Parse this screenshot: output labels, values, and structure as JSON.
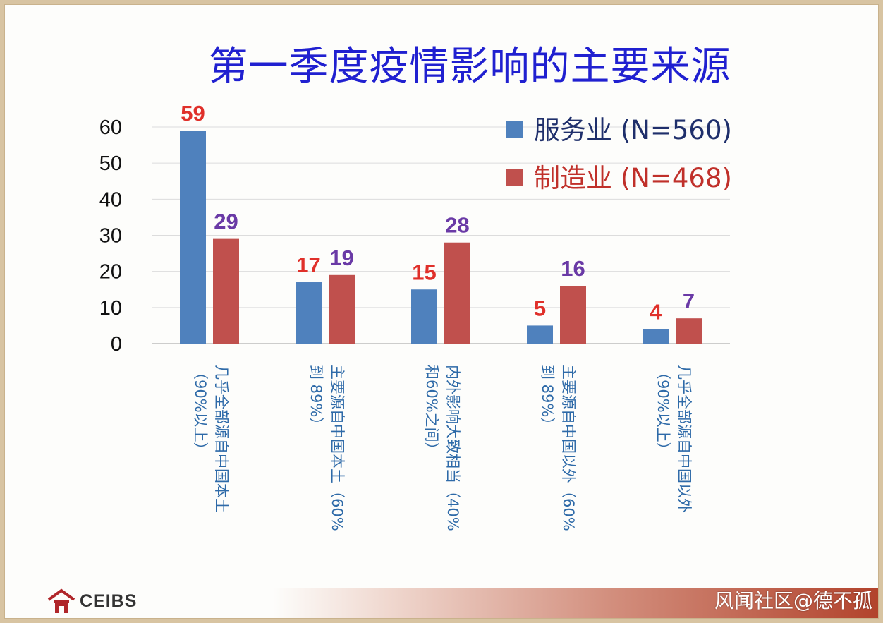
{
  "title": "第一季度疫情影响的主要来源",
  "chart_data": {
    "type": "bar",
    "categories": [
      [
        "几乎全部源自中国本土",
        "（90%以上）"
      ],
      [
        "主要源自中国本土（60%",
        "到 89%）"
      ],
      [
        "内外影响大致相当（40%",
        "和60%之间）"
      ],
      [
        "主要源自中国以外（60%",
        "到 89%）"
      ],
      [
        "几乎全部源自中国以外",
        "（90%以上）"
      ]
    ],
    "series": [
      {
        "name": "服务业 (N=560)",
        "values": [
          59,
          17,
          15,
          5,
          4
        ],
        "color": "#4f81bd",
        "label_color": "#e0302a"
      },
      {
        "name": "制造业 (N=468)",
        "values": [
          29,
          19,
          28,
          16,
          7
        ],
        "color": "#c0504d",
        "label_color": "#6a3aa6"
      }
    ],
    "yticks": [
      0,
      10,
      20,
      30,
      40,
      50,
      60
    ],
    "ylim": [
      0,
      60
    ],
    "grid": true,
    "legend_position": "top-right",
    "legend_text_colors": [
      "#1f2f6b",
      "#c0302a"
    ]
  },
  "logo": {
    "text": "CEIBS"
  },
  "watermark": "风闻社区@德不孤"
}
